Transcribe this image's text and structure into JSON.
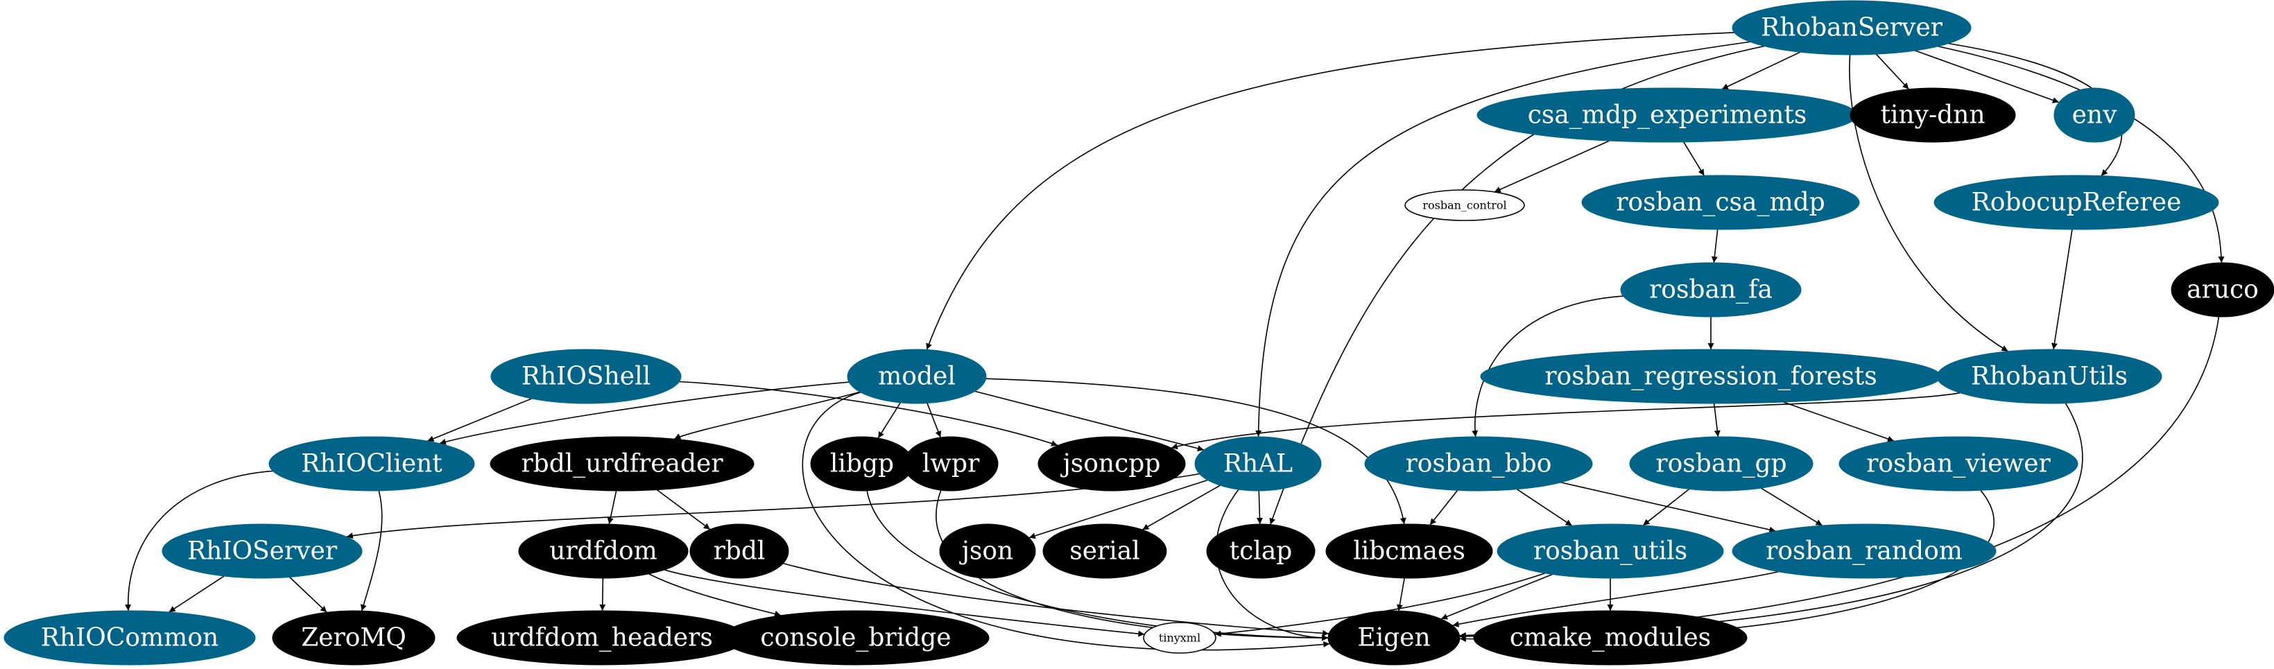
{
  "nodes": [
    {
      "id": "RhobanServer",
      "label": "RhobanServer",
      "style": "blue"
    },
    {
      "id": "csa_mdp_experiments",
      "label": "csa_mdp_experiments",
      "style": "blue"
    },
    {
      "id": "tiny-dnn",
      "label": "tiny-dnn",
      "style": "black"
    },
    {
      "id": "env",
      "label": "env",
      "style": "blue"
    },
    {
      "id": "rosban_control",
      "label": "rosban_control",
      "style": "white"
    },
    {
      "id": "rosban_csa_mdp",
      "label": "rosban_csa_mdp",
      "style": "blue"
    },
    {
      "id": "RobocupReferee",
      "label": "RobocupReferee",
      "style": "blue"
    },
    {
      "id": "rosban_fa",
      "label": "rosban_fa",
      "style": "blue"
    },
    {
      "id": "aruco",
      "label": "aruco",
      "style": "black"
    },
    {
      "id": "RhIOShell",
      "label": "RhIOShell",
      "style": "blue"
    },
    {
      "id": "model",
      "label": "model",
      "style": "blue"
    },
    {
      "id": "rosban_regression_forests",
      "label": "rosban_regression_forests",
      "style": "blue"
    },
    {
      "id": "RhobanUtils",
      "label": "RhobanUtils",
      "style": "blue"
    },
    {
      "id": "RhIOClient",
      "label": "RhIOClient",
      "style": "blue"
    },
    {
      "id": "rbdl_urdfreader",
      "label": "rbdl_urdfreader",
      "style": "black"
    },
    {
      "id": "libgp",
      "label": "libgp",
      "style": "black"
    },
    {
      "id": "lwpr",
      "label": "lwpr",
      "style": "black"
    },
    {
      "id": "jsoncpp",
      "label": "jsoncpp",
      "style": "black"
    },
    {
      "id": "RhAL",
      "label": "RhAL",
      "style": "blue"
    },
    {
      "id": "rosban_bbo",
      "label": "rosban_bbo",
      "style": "blue"
    },
    {
      "id": "rosban_gp",
      "label": "rosban_gp",
      "style": "blue"
    },
    {
      "id": "rosban_viewer",
      "label": "rosban_viewer",
      "style": "blue"
    },
    {
      "id": "RhIOServer",
      "label": "RhIOServer",
      "style": "blue"
    },
    {
      "id": "urdfdom",
      "label": "urdfdom",
      "style": "black"
    },
    {
      "id": "rbdl",
      "label": "rbdl",
      "style": "black"
    },
    {
      "id": "json",
      "label": "json",
      "style": "black"
    },
    {
      "id": "serial",
      "label": "serial",
      "style": "black"
    },
    {
      "id": "tclap",
      "label": "tclap",
      "style": "black"
    },
    {
      "id": "libcmaes",
      "label": "libcmaes",
      "style": "black"
    },
    {
      "id": "rosban_utils",
      "label": "rosban_utils",
      "style": "blue"
    },
    {
      "id": "rosban_random",
      "label": "rosban_random",
      "style": "blue"
    },
    {
      "id": "RhIOCommon",
      "label": "RhIOCommon",
      "style": "blue"
    },
    {
      "id": "ZeroMQ",
      "label": "ZeroMQ",
      "style": "black"
    },
    {
      "id": "urdfdom_headers",
      "label": "urdfdom_headers",
      "style": "black"
    },
    {
      "id": "console_bridge",
      "label": "console_bridge",
      "style": "black"
    },
    {
      "id": "tinyxml",
      "label": "tinyxml",
      "style": "white"
    },
    {
      "id": "Eigen",
      "label": "Eigen",
      "style": "black"
    },
    {
      "id": "cmake_modules",
      "label": "cmake_modules",
      "style": "black"
    }
  ],
  "edges": [
    [
      "RhobanServer",
      "csa_mdp_experiments"
    ],
    [
      "RhobanServer",
      "tiny-dnn"
    ],
    [
      "RhobanServer",
      "env"
    ],
    [
      "RhobanServer",
      "RobocupReferee"
    ],
    [
      "RhobanServer",
      "aruco"
    ],
    [
      "RhobanServer",
      "model"
    ],
    [
      "RhobanServer",
      "RhAL"
    ],
    [
      "RhobanServer",
      "tclap"
    ],
    [
      "RhobanServer",
      "RhobanUtils"
    ],
    [
      "csa_mdp_experiments",
      "rosban_control"
    ],
    [
      "csa_mdp_experiments",
      "rosban_csa_mdp"
    ],
    [
      "rosban_csa_mdp",
      "rosban_fa"
    ],
    [
      "rosban_fa",
      "rosban_regression_forests"
    ],
    [
      "rosban_fa",
      "rosban_bbo"
    ],
    [
      "RobocupReferee",
      "RhobanUtils"
    ],
    [
      "aruco",
      "Eigen"
    ],
    [
      "RhIOShell",
      "RhIOClient"
    ],
    [
      "RhIOShell",
      "jsoncpp"
    ],
    [
      "model",
      "RhIOClient"
    ],
    [
      "model",
      "rbdl_urdfreader"
    ],
    [
      "model",
      "libgp"
    ],
    [
      "model",
      "lwpr"
    ],
    [
      "model",
      "RhAL"
    ],
    [
      "model",
      "libcmaes"
    ],
    [
      "model",
      "Eigen"
    ],
    [
      "rosban_regression_forests",
      "rosban_gp"
    ],
    [
      "rosban_regression_forests",
      "rosban_viewer"
    ],
    [
      "RhobanUtils",
      "jsoncpp"
    ],
    [
      "RhobanUtils",
      "Eigen"
    ],
    [
      "RhIOClient",
      "RhIOCommon"
    ],
    [
      "RhIOClient",
      "ZeroMQ"
    ],
    [
      "rbdl_urdfreader",
      "urdfdom"
    ],
    [
      "rbdl_urdfreader",
      "rbdl"
    ],
    [
      "libgp",
      "Eigen"
    ],
    [
      "lwpr",
      "Eigen"
    ],
    [
      "RhAL",
      "RhIOServer"
    ],
    [
      "RhAL",
      "json"
    ],
    [
      "RhAL",
      "serial"
    ],
    [
      "RhAL",
      "tclap"
    ],
    [
      "RhAL",
      "Eigen"
    ],
    [
      "rosban_bbo",
      "libcmaes"
    ],
    [
      "rosban_bbo",
      "rosban_utils"
    ],
    [
      "rosban_bbo",
      "rosban_random"
    ],
    [
      "rosban_gp",
      "rosban_utils"
    ],
    [
      "rosban_gp",
      "rosban_random"
    ],
    [
      "rosban_viewer",
      "Eigen"
    ],
    [
      "RhIOServer",
      "RhIOCommon"
    ],
    [
      "RhIOServer",
      "ZeroMQ"
    ],
    [
      "urdfdom",
      "urdfdom_headers"
    ],
    [
      "urdfdom",
      "console_bridge"
    ],
    [
      "urdfdom",
      "tinyxml"
    ],
    [
      "rbdl",
      "Eigen"
    ],
    [
      "libcmaes",
      "Eigen"
    ],
    [
      "rosban_utils",
      "tinyxml"
    ],
    [
      "rosban_utils",
      "Eigen"
    ],
    [
      "rosban_utils",
      "cmake_modules"
    ],
    [
      "rosban_random",
      "Eigen"
    ]
  ],
  "colors": {
    "blue_node": "#006489",
    "black_node": "#000000",
    "white_node": "#ffffff",
    "edge": "#000000"
  }
}
